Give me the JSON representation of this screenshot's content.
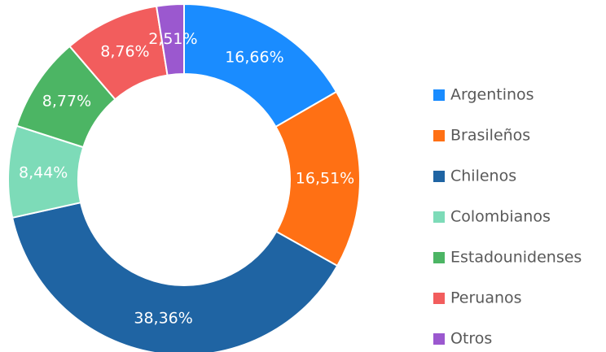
{
  "chart_data": {
    "type": "donut",
    "categories": [
      "Argentinos",
      "Brasileños",
      "Chilenos",
      "Colombianos",
      "Estadounidenses",
      "Peruanos",
      "Otros"
    ],
    "values": [
      16.66,
      16.51,
      38.36,
      8.44,
      8.77,
      8.76,
      2.51
    ],
    "value_labels": [
      "16,66%",
      "16,51%",
      "38,36%",
      "8,44%",
      "8,77%",
      "8,76%",
      "2,51%"
    ],
    "colors": [
      "#1a8cff",
      "#ff7014",
      "#1f64a3",
      "#7ddbb8",
      "#4cb564",
      "#f25d5d",
      "#9b58cf"
    ],
    "legend": "right"
  }
}
